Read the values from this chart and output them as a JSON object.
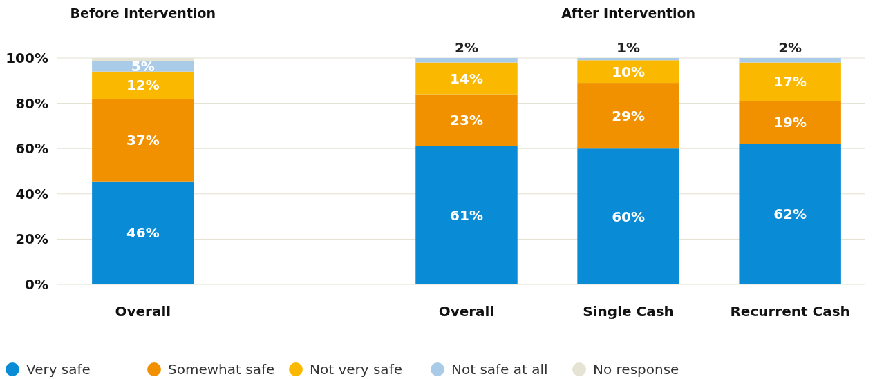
{
  "chart_data": {
    "type": "bar",
    "stacked": true,
    "categories": [
      "Overall",
      null,
      "Overall",
      "Single Cash",
      "Recurrent Cash"
    ],
    "series": [
      {
        "name": "Very safe",
        "color": "#0a8bd6",
        "values": [
          45.5,
          null,
          61,
          60,
          62
        ],
        "value_labels": [
          "46%",
          null,
          "61%",
          "60%",
          "62%"
        ]
      },
      {
        "name": "Somewhat safe",
        "color": "#f29100",
        "values": [
          36.5,
          null,
          23,
          29,
          19
        ],
        "value_labels": [
          "37%",
          null,
          "23%",
          "29%",
          "19%"
        ]
      },
      {
        "name": "Not very safe",
        "color": "#fbb800",
        "values": [
          12,
          null,
          14,
          10,
          17
        ],
        "value_labels": [
          "12%",
          null,
          "14%",
          "10%",
          "17%"
        ]
      },
      {
        "name": "Not safe at all",
        "color": "#a9cbe8",
        "values": [
          4.5,
          null,
          2,
          1,
          2
        ],
        "value_labels": [
          "5%",
          null,
          "2%",
          "1%",
          "2%"
        ]
      },
      {
        "name": "No response",
        "color": "#e5e3d3",
        "values": [
          1.5,
          null,
          0,
          0,
          0
        ]
      }
    ],
    "ylim": [
      0,
      100
    ],
    "yticks": [
      {
        "value": 0,
        "label": "0%"
      },
      {
        "value": 20,
        "label": "20%"
      },
      {
        "value": 40,
        "label": "40%"
      },
      {
        "value": 60,
        "label": "60%"
      },
      {
        "value": 80,
        "label": "80%"
      },
      {
        "value": 100,
        "label": "100%"
      }
    ],
    "grid": "y",
    "legend": "bottom",
    "annotations": [
      "Before Intervention",
      "After Intervention"
    ]
  }
}
